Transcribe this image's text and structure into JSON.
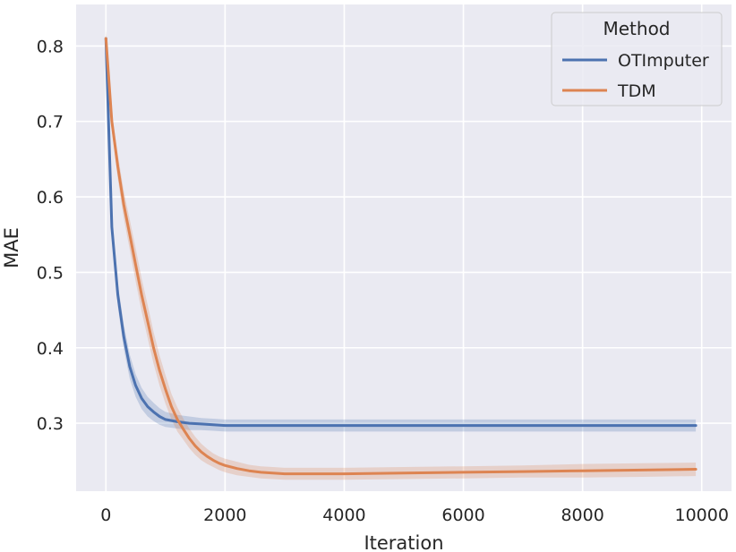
{
  "chart_data": {
    "type": "line",
    "xlabel": "Iteration",
    "ylabel": "MAE",
    "xlim": [
      -500,
      10500
    ],
    "ylim": [
      0.21,
      0.855
    ],
    "xticks": [
      0,
      2000,
      4000,
      6000,
      8000,
      10000
    ],
    "yticks": [
      0.3,
      0.4,
      0.5,
      0.6,
      0.7,
      0.8
    ],
    "xtick_labels": [
      "0",
      "2000",
      "4000",
      "6000",
      "8000",
      "10000"
    ],
    "ytick_labels": [
      "0.3",
      "0.4",
      "0.5",
      "0.6",
      "0.7",
      "0.8"
    ],
    "grid": true,
    "background": "#eaeaf2",
    "legend": {
      "title": "Method",
      "placement": "top-right"
    },
    "series": [
      {
        "name": "OTImputer",
        "color": "#4c72b0",
        "x": [
          0,
          100,
          200,
          300,
          400,
          500,
          600,
          700,
          800,
          900,
          1000,
          1200,
          1400,
          1600,
          1800,
          2000,
          2500,
          3000,
          4000,
          5000,
          6000,
          7000,
          8000,
          9000,
          9900
        ],
        "y": [
          0.81,
          0.56,
          0.47,
          0.415,
          0.375,
          0.35,
          0.333,
          0.322,
          0.315,
          0.309,
          0.305,
          0.302,
          0.3,
          0.299,
          0.298,
          0.297,
          0.297,
          0.297,
          0.297,
          0.297,
          0.297,
          0.297,
          0.297,
          0.297,
          0.297
        ],
        "band": [
          0.012,
          0.012,
          0.015,
          0.016,
          0.016,
          0.015,
          0.014,
          0.013,
          0.012,
          0.011,
          0.01,
          0.009,
          0.009,
          0.008,
          0.008,
          0.008,
          0.008,
          0.008,
          0.008,
          0.008,
          0.008,
          0.008,
          0.008,
          0.008,
          0.008
        ]
      },
      {
        "name": "TDM",
        "color": "#dd8452",
        "x": [
          0,
          100,
          200,
          300,
          400,
          500,
          600,
          700,
          800,
          900,
          1000,
          1100,
          1200,
          1300,
          1400,
          1500,
          1600,
          1700,
          1800,
          1900,
          2000,
          2200,
          2400,
          2600,
          2800,
          3000,
          3500,
          4000,
          5000,
          6000,
          7000,
          8000,
          9000,
          9900
        ],
        "y": [
          0.81,
          0.7,
          0.64,
          0.59,
          0.55,
          0.51,
          0.47,
          0.435,
          0.4,
          0.37,
          0.345,
          0.322,
          0.305,
          0.292,
          0.28,
          0.27,
          0.262,
          0.256,
          0.251,
          0.247,
          0.244,
          0.24,
          0.237,
          0.235,
          0.234,
          0.233,
          0.233,
          0.233,
          0.234,
          0.235,
          0.236,
          0.237,
          0.238,
          0.239
        ],
        "band": [
          0.01,
          0.012,
          0.016,
          0.018,
          0.02,
          0.022,
          0.022,
          0.022,
          0.021,
          0.02,
          0.019,
          0.017,
          0.016,
          0.014,
          0.013,
          0.012,
          0.011,
          0.01,
          0.009,
          0.009,
          0.009,
          0.009,
          0.008,
          0.008,
          0.008,
          0.008,
          0.008,
          0.008,
          0.008,
          0.008,
          0.008,
          0.009,
          0.009,
          0.009
        ]
      }
    ]
  }
}
